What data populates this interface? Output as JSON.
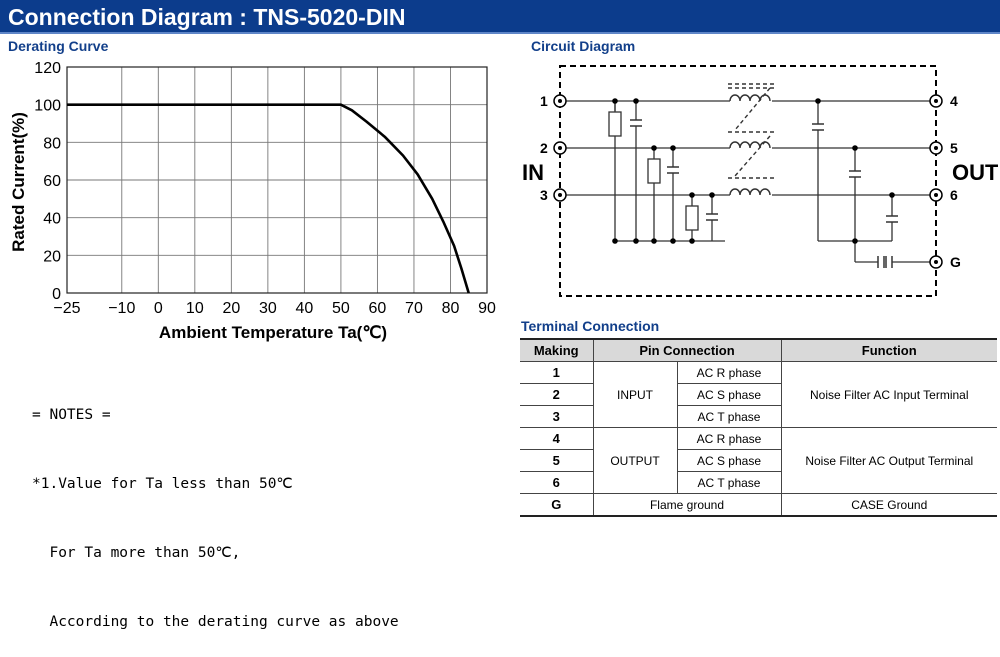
{
  "header": {
    "title": "Connection Diagram : TNS-5020-DIN"
  },
  "derating": {
    "section_title": "Derating Curve",
    "chart_data": {
      "type": "line",
      "title": "Derating Curve",
      "xlabel": "Ambient Temperature Ta(℃)",
      "ylabel": "Rated Current(%)",
      "xlim": [
        -25,
        90
      ],
      "ylim": [
        0,
        120
      ],
      "x_ticks": [
        "−25",
        "−10",
        "0",
        "10",
        "20",
        "30",
        "40",
        "50",
        "60",
        "70",
        "80",
        "90"
      ],
      "x_tick_values": [
        -25,
        -10,
        0,
        10,
        20,
        30,
        40,
        50,
        60,
        70,
        80,
        90
      ],
      "y_ticks": [
        "0",
        "20",
        "40",
        "60",
        "80",
        "100",
        "120"
      ],
      "y_tick_values": [
        0,
        20,
        40,
        60,
        80,
        100,
        120
      ],
      "grid": true,
      "series": [
        {
          "x": [
            -25,
            50,
            53,
            57,
            62,
            67,
            71,
            75,
            78,
            81,
            83,
            85
          ],
          "y": [
            100,
            100,
            97,
            91,
            83,
            73,
            63,
            50,
            38,
            25,
            13,
            0
          ]
        }
      ]
    }
  },
  "notes": {
    "heading": "= NOTES =",
    "line1": "*1.Value for Ta less than 50℃",
    "line2": "  For Ta more than 50℃,",
    "line3": "  According to the derating curve as above"
  },
  "circuit": {
    "section_title": "Circuit Diagram",
    "in_label": "IN",
    "out_label": "OUT",
    "pins_left": [
      "1",
      "2",
      "3"
    ],
    "pins_right": [
      "4",
      "5",
      "6",
      "G"
    ]
  },
  "terminal": {
    "section_title": "Terminal Connection",
    "headers": [
      "Making",
      "Pin Connection",
      "Function"
    ],
    "rows": [
      {
        "making": "1",
        "phase": "AC R phase"
      },
      {
        "making": "2",
        "phase": "AC S phase"
      },
      {
        "making": "3",
        "phase": "AC T phase"
      },
      {
        "making": "4",
        "phase": "AC R phase"
      },
      {
        "making": "5",
        "phase": "AC S phase"
      },
      {
        "making": "6",
        "phase": "AC T phase"
      }
    ],
    "input_group": "INPUT",
    "output_group": "OUTPUT",
    "input_function": "Noise Filter AC  Input Terminal",
    "output_function": "Noise Filter AC  Output Terminal",
    "ground_making": "G",
    "ground_pin": "Flame ground",
    "ground_function": "CASE  Ground"
  }
}
